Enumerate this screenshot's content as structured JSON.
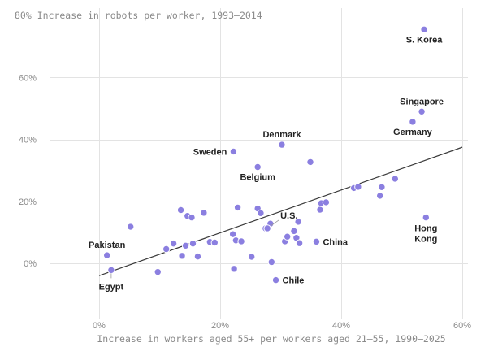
{
  "chart_data": {
    "type": "scatter",
    "title": "80% Increase in robots per worker, 1993–2014",
    "xlabel": "Increase in workers aged 55+ per workers aged 21–55, 1990–2025",
    "ylabel": "",
    "xlim": [
      0,
      0.6
    ],
    "ylim": [
      -0.1,
      0.8
    ],
    "x_ticks": [
      {
        "value": 0.0,
        "label": "0%"
      },
      {
        "value": 0.2,
        "label": "20%"
      },
      {
        "value": 0.4,
        "label": "40%"
      },
      {
        "value": 0.6,
        "label": "60%"
      }
    ],
    "y_ticks": [
      {
        "value": 0.0,
        "label": "0%"
      },
      {
        "value": 0.2,
        "label": "20%"
      },
      {
        "value": 0.4,
        "label": "40%"
      },
      {
        "value": 0.6,
        "label": "60%"
      }
    ],
    "grid": true,
    "colors": {
      "points": "#8b7fe0",
      "trend": "#3a3a3a",
      "grid": "#e3e3e3"
    },
    "trendline": {
      "x": [
        0.0,
        0.6
      ],
      "y": [
        -0.04,
        0.375
      ]
    },
    "labeled_points": [
      {
        "label": "S. Korea",
        "x": 0.537,
        "y": 0.755,
        "anchor": "below"
      },
      {
        "label": "Singapore",
        "x": 0.533,
        "y": 0.49,
        "anchor": "above"
      },
      {
        "label": "Germany",
        "x": 0.518,
        "y": 0.457,
        "anchor": "below"
      },
      {
        "label": "Denmark",
        "x": 0.302,
        "y": 0.383,
        "anchor": "above"
      },
      {
        "label": "Sweden",
        "x": 0.222,
        "y": 0.361,
        "anchor": "left"
      },
      {
        "label": "Belgium",
        "x": 0.262,
        "y": 0.311,
        "anchor": "below"
      },
      {
        "label": "U.S.",
        "x": 0.278,
        "y": 0.113,
        "anchor": "leader"
      },
      {
        "label": "China",
        "x": 0.359,
        "y": 0.07,
        "anchor": "right"
      },
      {
        "label": "Hong Kong",
        "x": 0.54,
        "y": 0.148,
        "anchor": "below"
      },
      {
        "label": "Pakistan",
        "x": 0.013,
        "y": 0.026,
        "anchor": "above"
      },
      {
        "label": "Egypt",
        "x": 0.02,
        "y": -0.022,
        "anchor": "below"
      },
      {
        "label": "Chile",
        "x": 0.292,
        "y": -0.054,
        "anchor": "right"
      }
    ],
    "points": [
      {
        "x": 0.052,
        "y": 0.118
      },
      {
        "x": 0.097,
        "y": -0.028
      },
      {
        "x": 0.111,
        "y": 0.046
      },
      {
        "x": 0.123,
        "y": 0.064
      },
      {
        "x": 0.135,
        "y": 0.172
      },
      {
        "x": 0.137,
        "y": 0.024
      },
      {
        "x": 0.143,
        "y": 0.057
      },
      {
        "x": 0.146,
        "y": 0.153
      },
      {
        "x": 0.153,
        "y": 0.148
      },
      {
        "x": 0.155,
        "y": 0.064
      },
      {
        "x": 0.163,
        "y": 0.022
      },
      {
        "x": 0.173,
        "y": 0.163
      },
      {
        "x": 0.183,
        "y": 0.069
      },
      {
        "x": 0.191,
        "y": 0.067
      },
      {
        "x": 0.221,
        "y": 0.094
      },
      {
        "x": 0.223,
        "y": -0.018
      },
      {
        "x": 0.226,
        "y": 0.074
      },
      {
        "x": 0.229,
        "y": 0.18
      },
      {
        "x": 0.235,
        "y": 0.071
      },
      {
        "x": 0.252,
        "y": 0.021
      },
      {
        "x": 0.262,
        "y": 0.177
      },
      {
        "x": 0.267,
        "y": 0.162
      },
      {
        "x": 0.275,
        "y": 0.113
      },
      {
        "x": 0.283,
        "y": 0.128
      },
      {
        "x": 0.285,
        "y": 0.004
      },
      {
        "x": 0.307,
        "y": 0.071
      },
      {
        "x": 0.311,
        "y": 0.086
      },
      {
        "x": 0.322,
        "y": 0.104
      },
      {
        "x": 0.326,
        "y": 0.082
      },
      {
        "x": 0.329,
        "y": 0.134
      },
      {
        "x": 0.331,
        "y": 0.065
      },
      {
        "x": 0.349,
        "y": 0.327
      },
      {
        "x": 0.365,
        "y": 0.173
      },
      {
        "x": 0.367,
        "y": 0.194
      },
      {
        "x": 0.375,
        "y": 0.197
      },
      {
        "x": 0.421,
        "y": 0.243
      },
      {
        "x": 0.428,
        "y": 0.247
      },
      {
        "x": 0.464,
        "y": 0.218
      },
      {
        "x": 0.467,
        "y": 0.246
      },
      {
        "x": 0.489,
        "y": 0.273
      }
    ]
  }
}
